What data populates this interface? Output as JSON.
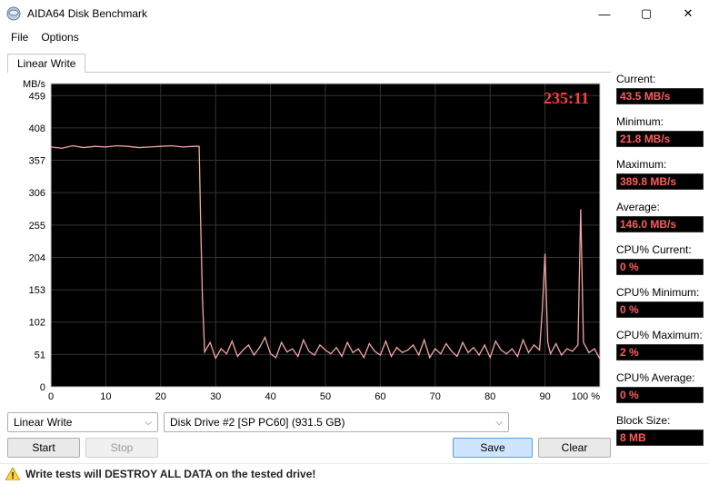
{
  "window": {
    "title": "AIDA64 Disk Benchmark",
    "minimize_glyph": "—",
    "maximize_glyph": "▢",
    "close_glyph": "✕"
  },
  "menu": {
    "file": "File",
    "options": "Options"
  },
  "tab": {
    "label": "Linear Write"
  },
  "chart": {
    "type": "line",
    "timer": "235:11",
    "yaxis_label": "MB/s",
    "xaxis_label": "100 %",
    "timer_color": "#ff3b3b",
    "background_color": "#000000",
    "grid_color": "#333333",
    "axis_color": "#cccccc",
    "line_color": "#f5a5a5",
    "ylim": [
      0,
      478
    ],
    "yticks": [
      0,
      51,
      102,
      153,
      204,
      255,
      306,
      357,
      408,
      459
    ],
    "xlim": [
      0,
      100
    ],
    "xticks": [
      0,
      10,
      20,
      30,
      40,
      50,
      60,
      70,
      80,
      90
    ],
    "data_x": [
      0,
      2,
      4,
      6,
      8,
      10,
      12,
      14,
      16,
      18,
      20,
      22,
      24,
      26,
      27,
      27.3,
      27.6,
      28,
      29,
      30,
      31,
      32,
      33,
      34,
      35,
      36,
      37,
      38,
      39,
      40,
      41,
      42,
      43,
      44,
      45,
      46,
      47,
      48,
      49,
      50,
      51,
      52,
      53,
      54,
      55,
      56,
      57,
      58,
      59,
      60,
      61,
      62,
      63,
      64,
      65,
      66,
      67,
      68,
      69,
      70,
      71,
      72,
      73,
      74,
      75,
      76,
      77,
      78,
      79,
      80,
      81,
      82,
      83,
      84,
      85,
      86,
      87,
      88,
      89,
      89.5,
      90,
      90.5,
      91,
      92,
      93,
      94,
      95,
      96,
      96.5,
      97,
      98,
      99,
      100
    ],
    "data_y": [
      378,
      376,
      380,
      377,
      379,
      378,
      380,
      379,
      377,
      378,
      379,
      380,
      378,
      379,
      379,
      250,
      140,
      55,
      70,
      45,
      60,
      52,
      72,
      48,
      58,
      66,
      50,
      62,
      78,
      52,
      46,
      70,
      55,
      60,
      48,
      74,
      56,
      50,
      66,
      58,
      52,
      62,
      48,
      70,
      54,
      60,
      46,
      68,
      56,
      50,
      72,
      48,
      62,
      54,
      58,
      66,
      50,
      74,
      46,
      60,
      52,
      68,
      56,
      48,
      70,
      54,
      62,
      50,
      66,
      46,
      72,
      58,
      52,
      60,
      48,
      74,
      54,
      66,
      58,
      120,
      210,
      70,
      52,
      68,
      50,
      60,
      56,
      66,
      280,
      70,
      54,
      60,
      44
    ],
    "yticks_labels": [
      "0",
      "51",
      "102",
      "153",
      "204",
      "255",
      "306",
      "357",
      "408",
      "459"
    ],
    "xticks_labels": [
      "0",
      "10",
      "20",
      "30",
      "40",
      "50",
      "60",
      "70",
      "80",
      "90"
    ]
  },
  "controls": {
    "test_select": "Linear Write",
    "drive_select": "Disk Drive #2  [SP     PC60]  (931.5 GB)",
    "start": "Start",
    "stop": "Stop",
    "save": "Save",
    "clear": "Clear"
  },
  "warning": "Write tests will DESTROY ALL DATA on the tested drive!",
  "stats": {
    "current_label": "Current:",
    "current_value": "43.5 MB/s",
    "minimum_label": "Minimum:",
    "minimum_value": "21.8 MB/s",
    "maximum_label": "Maximum:",
    "maximum_value": "389.8 MB/s",
    "average_label": "Average:",
    "average_value": "146.0 MB/s",
    "cpu_current_label": "CPU% Current:",
    "cpu_current_value": "0 %",
    "cpu_minimum_label": "CPU% Minimum:",
    "cpu_minimum_value": "0 %",
    "cpu_maximum_label": "CPU% Maximum:",
    "cpu_maximum_value": "2 %",
    "cpu_average_label": "CPU% Average:",
    "cpu_average_value": "0 %",
    "block_size_label": "Block Size:",
    "block_size_value": "8 MB"
  }
}
